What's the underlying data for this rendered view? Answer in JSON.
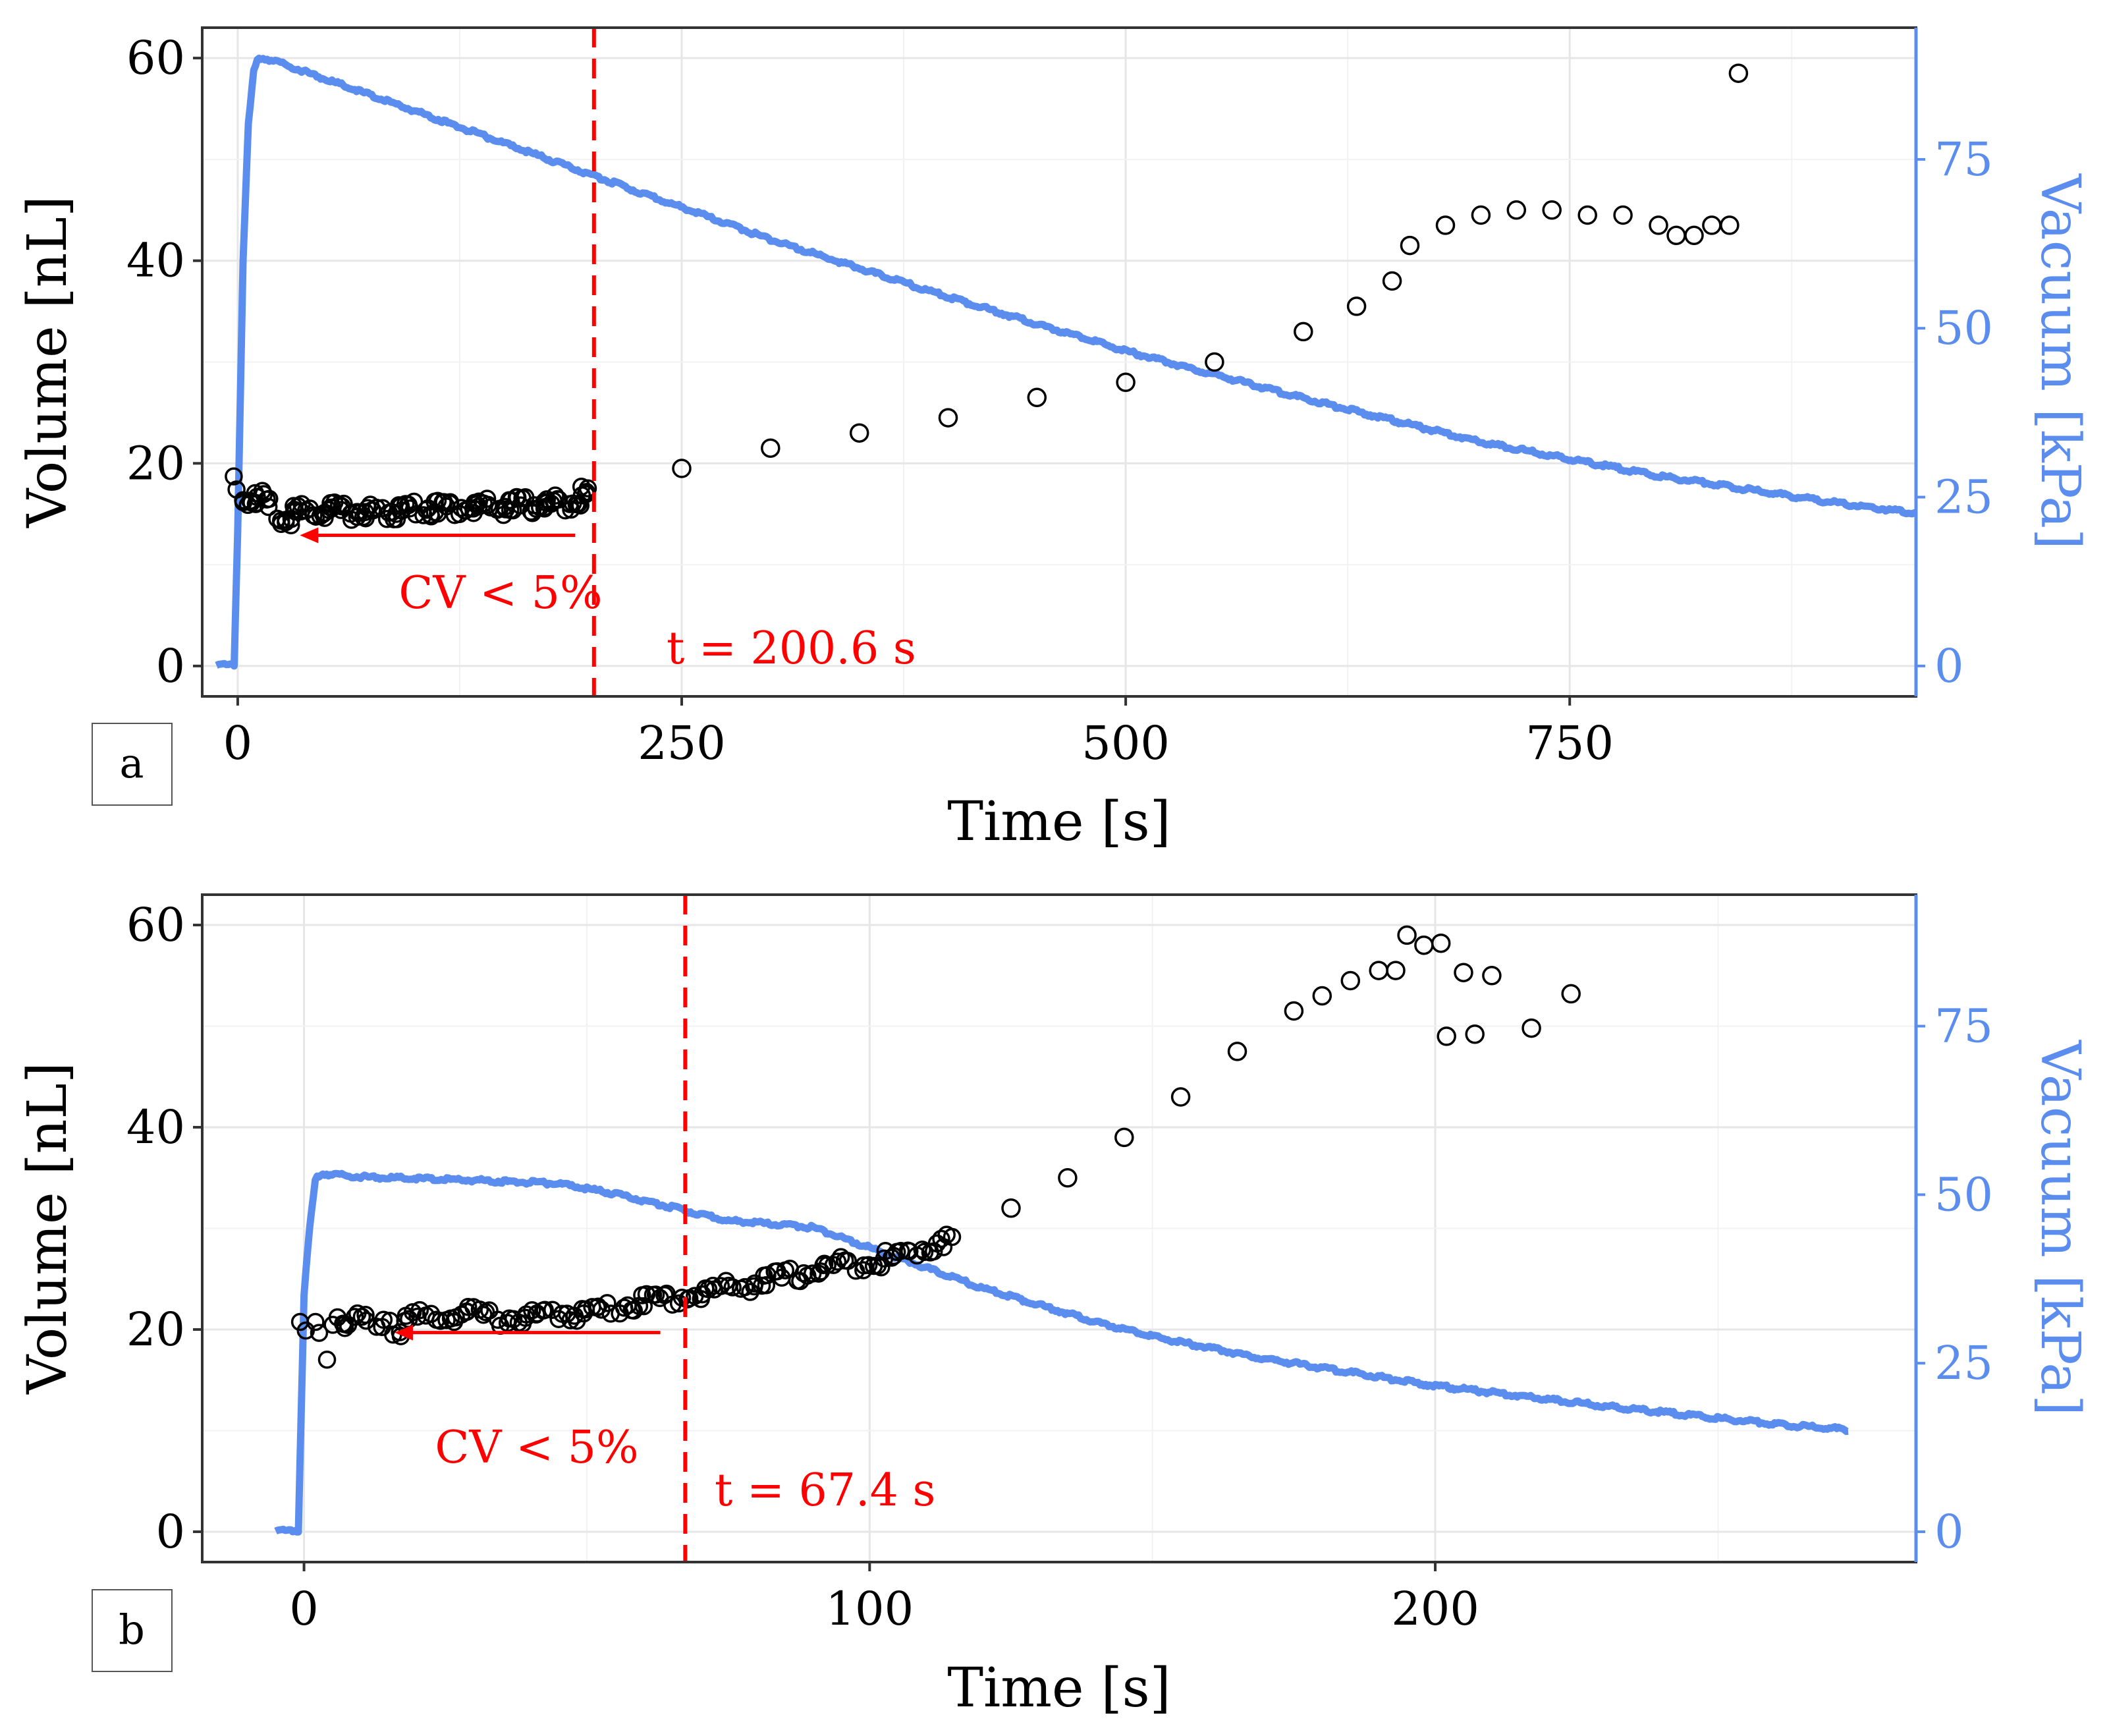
{
  "chart_data": [
    {
      "panel": "a",
      "type": "scatter+line",
      "xlabel": "Time [s]",
      "ylabel": "Volume [nL]",
      "y2label": "Vacuum [kPa]",
      "xlim": [
        -20,
        945
      ],
      "ylim": [
        -3,
        63
      ],
      "y2lim": [
        -4.5,
        94.5
      ],
      "x_ticks": [
        0,
        250,
        500,
        750
      ],
      "y_ticks": [
        0,
        20,
        40,
        60
      ],
      "y2_ticks": [
        0,
        25,
        50,
        75
      ],
      "grid": true,
      "colors": {
        "volume": "#000000",
        "vacuum": "#5b8def",
        "annotation": "#ff0000"
      },
      "series": [
        {
          "name": "Volume",
          "kind": "scatter",
          "axis": "left",
          "points": [
            [
              0,
              19
            ],
            [
              3,
              17.2
            ],
            [
              8,
              16.8
            ],
            [
              15,
              17.2
            ],
            [
              22,
              15.5
            ],
            [
              25,
              14.8
            ],
            [
              35,
              15.5
            ],
            [
              50,
              15.9
            ],
            [
              80,
              15.5
            ],
            [
              100,
              16
            ],
            [
              150,
              16.2
            ],
            [
              180,
              16.4
            ],
            [
              200,
              17.5
            ],
            [
              250,
              19.5
            ],
            [
              300,
              21.5
            ],
            [
              350,
              23
            ],
            [
              400,
              24.5
            ],
            [
              450,
              26.5
            ],
            [
              500,
              28
            ],
            [
              550,
              30
            ],
            [
              600,
              33
            ],
            [
              630,
              35.5
            ],
            [
              650,
              38
            ],
            [
              660,
              41.5
            ],
            [
              680,
              43.5
            ],
            [
              700,
              44.5
            ],
            [
              720,
              45
            ],
            [
              740,
              45
            ],
            [
              760,
              44.5
            ],
            [
              780,
              44.5
            ],
            [
              800,
              43.5
            ],
            [
              810,
              42.5
            ],
            [
              820,
              42.5
            ],
            [
              830,
              43.5
            ],
            [
              840,
              43.5
            ],
            [
              845,
              58.5
            ]
          ]
        },
        {
          "name": "Vacuum",
          "kind": "line",
          "axis": "right",
          "points": [
            [
              -12,
              0
            ],
            [
              -2,
              0
            ],
            [
              0,
              20
            ],
            [
              3,
              60
            ],
            [
              6,
              80
            ],
            [
              9,
              88
            ],
            [
              12,
              90
            ],
            [
              20,
              89.5
            ],
            [
              100,
              82
            ],
            [
              200,
              72.5
            ],
            [
              300,
              63
            ],
            [
              400,
              54.5
            ],
            [
              500,
              46.5
            ],
            [
              600,
              39.5
            ],
            [
              700,
              33
            ],
            [
              800,
              28
            ],
            [
              900,
              24
            ],
            [
              945,
              22.5
            ]
          ]
        }
      ],
      "threshold": {
        "x": 200.6,
        "label": "t = 200.6 s"
      },
      "arrow": {
        "from_x": 190,
        "to_x": 35,
        "y": 12.9,
        "label": "CV < 5%"
      }
    },
    {
      "panel": "b",
      "type": "scatter+line",
      "xlabel": "Time [s]",
      "ylabel": "Volume [nL]",
      "y2label": "Vacuum [kPa]",
      "xlim": [
        -18,
        285
      ],
      "ylim": [
        -3,
        63
      ],
      "y2lim": [
        -4.5,
        94.5
      ],
      "x_ticks": [
        0,
        100,
        200
      ],
      "y_ticks": [
        0,
        20,
        40,
        60
      ],
      "y2_ticks": [
        0,
        25,
        50,
        75
      ],
      "grid": true,
      "colors": {
        "volume": "#000000",
        "vacuum": "#5b8def",
        "annotation": "#ff0000"
      },
      "series": [
        {
          "name": "Volume",
          "kind": "scatter",
          "axis": "left",
          "points": [
            [
              0,
              21
            ],
            [
              1,
              20.5
            ],
            [
              2,
              21.5
            ],
            [
              3,
              20.5
            ],
            [
              4,
              18
            ],
            [
              5,
              21
            ],
            [
              6,
              21.8
            ],
            [
              8,
              20.5
            ],
            [
              10,
              21.5
            ],
            [
              12,
              21
            ],
            [
              15,
              21.5
            ],
            [
              16,
              20
            ],
            [
              20,
              21.5
            ],
            [
              25,
              21.8
            ],
            [
              30,
              22
            ],
            [
              35,
              21.5
            ],
            [
              40,
              21.5
            ],
            [
              45,
              22
            ],
            [
              50,
              22
            ],
            [
              55,
              22.5
            ],
            [
              60,
              23.2
            ],
            [
              67,
              23.6
            ],
            [
              75,
              24.5
            ],
            [
              85,
              25.5
            ],
            [
              95,
              26.8
            ],
            [
              105,
              27.5
            ],
            [
              115,
              29.5
            ],
            [
              125,
              32
            ],
            [
              135,
              35
            ],
            [
              145,
              39
            ],
            [
              155,
              43
            ],
            [
              165,
              47.5
            ],
            [
              175,
              51.5
            ],
            [
              180,
              53
            ],
            [
              185,
              54.5
            ],
            [
              190,
              55.5
            ],
            [
              193,
              55.5
            ],
            [
              195,
              59
            ],
            [
              198,
              58
            ],
            [
              201,
              58.2
            ],
            [
              202,
              49
            ],
            [
              205,
              55.3
            ],
            [
              207,
              49.2
            ],
            [
              210,
              55
            ],
            [
              217,
              49.8
            ],
            [
              224,
              53.2
            ]
          ]
        },
        {
          "name": "Vacuum",
          "kind": "line",
          "axis": "right",
          "points": [
            [
              -5,
              0
            ],
            [
              -1,
              0
            ],
            [
              0,
              35
            ],
            [
              1,
              45
            ],
            [
              2,
              52
            ],
            [
              3,
              53
            ],
            [
              10,
              52.5
            ],
            [
              30,
              52
            ],
            [
              45,
              51.5
            ],
            [
              55,
              50
            ],
            [
              65,
              48
            ],
            [
              75,
              46
            ],
            [
              90,
              45
            ],
            [
              100,
              42
            ],
            [
              120,
              36
            ],
            [
              140,
              31
            ],
            [
              150,
              28.8
            ],
            [
              170,
              25.5
            ],
            [
              200,
              21.5
            ],
            [
              230,
              18.5
            ],
            [
              260,
              15.8
            ],
            [
              273,
              15
            ]
          ]
        }
      ],
      "threshold": {
        "x": 67.4,
        "label": "t = 67.4 s"
      },
      "arrow": {
        "from_x": 63,
        "to_x": 16,
        "y": 19.7,
        "label": "CV < 5%"
      }
    }
  ]
}
